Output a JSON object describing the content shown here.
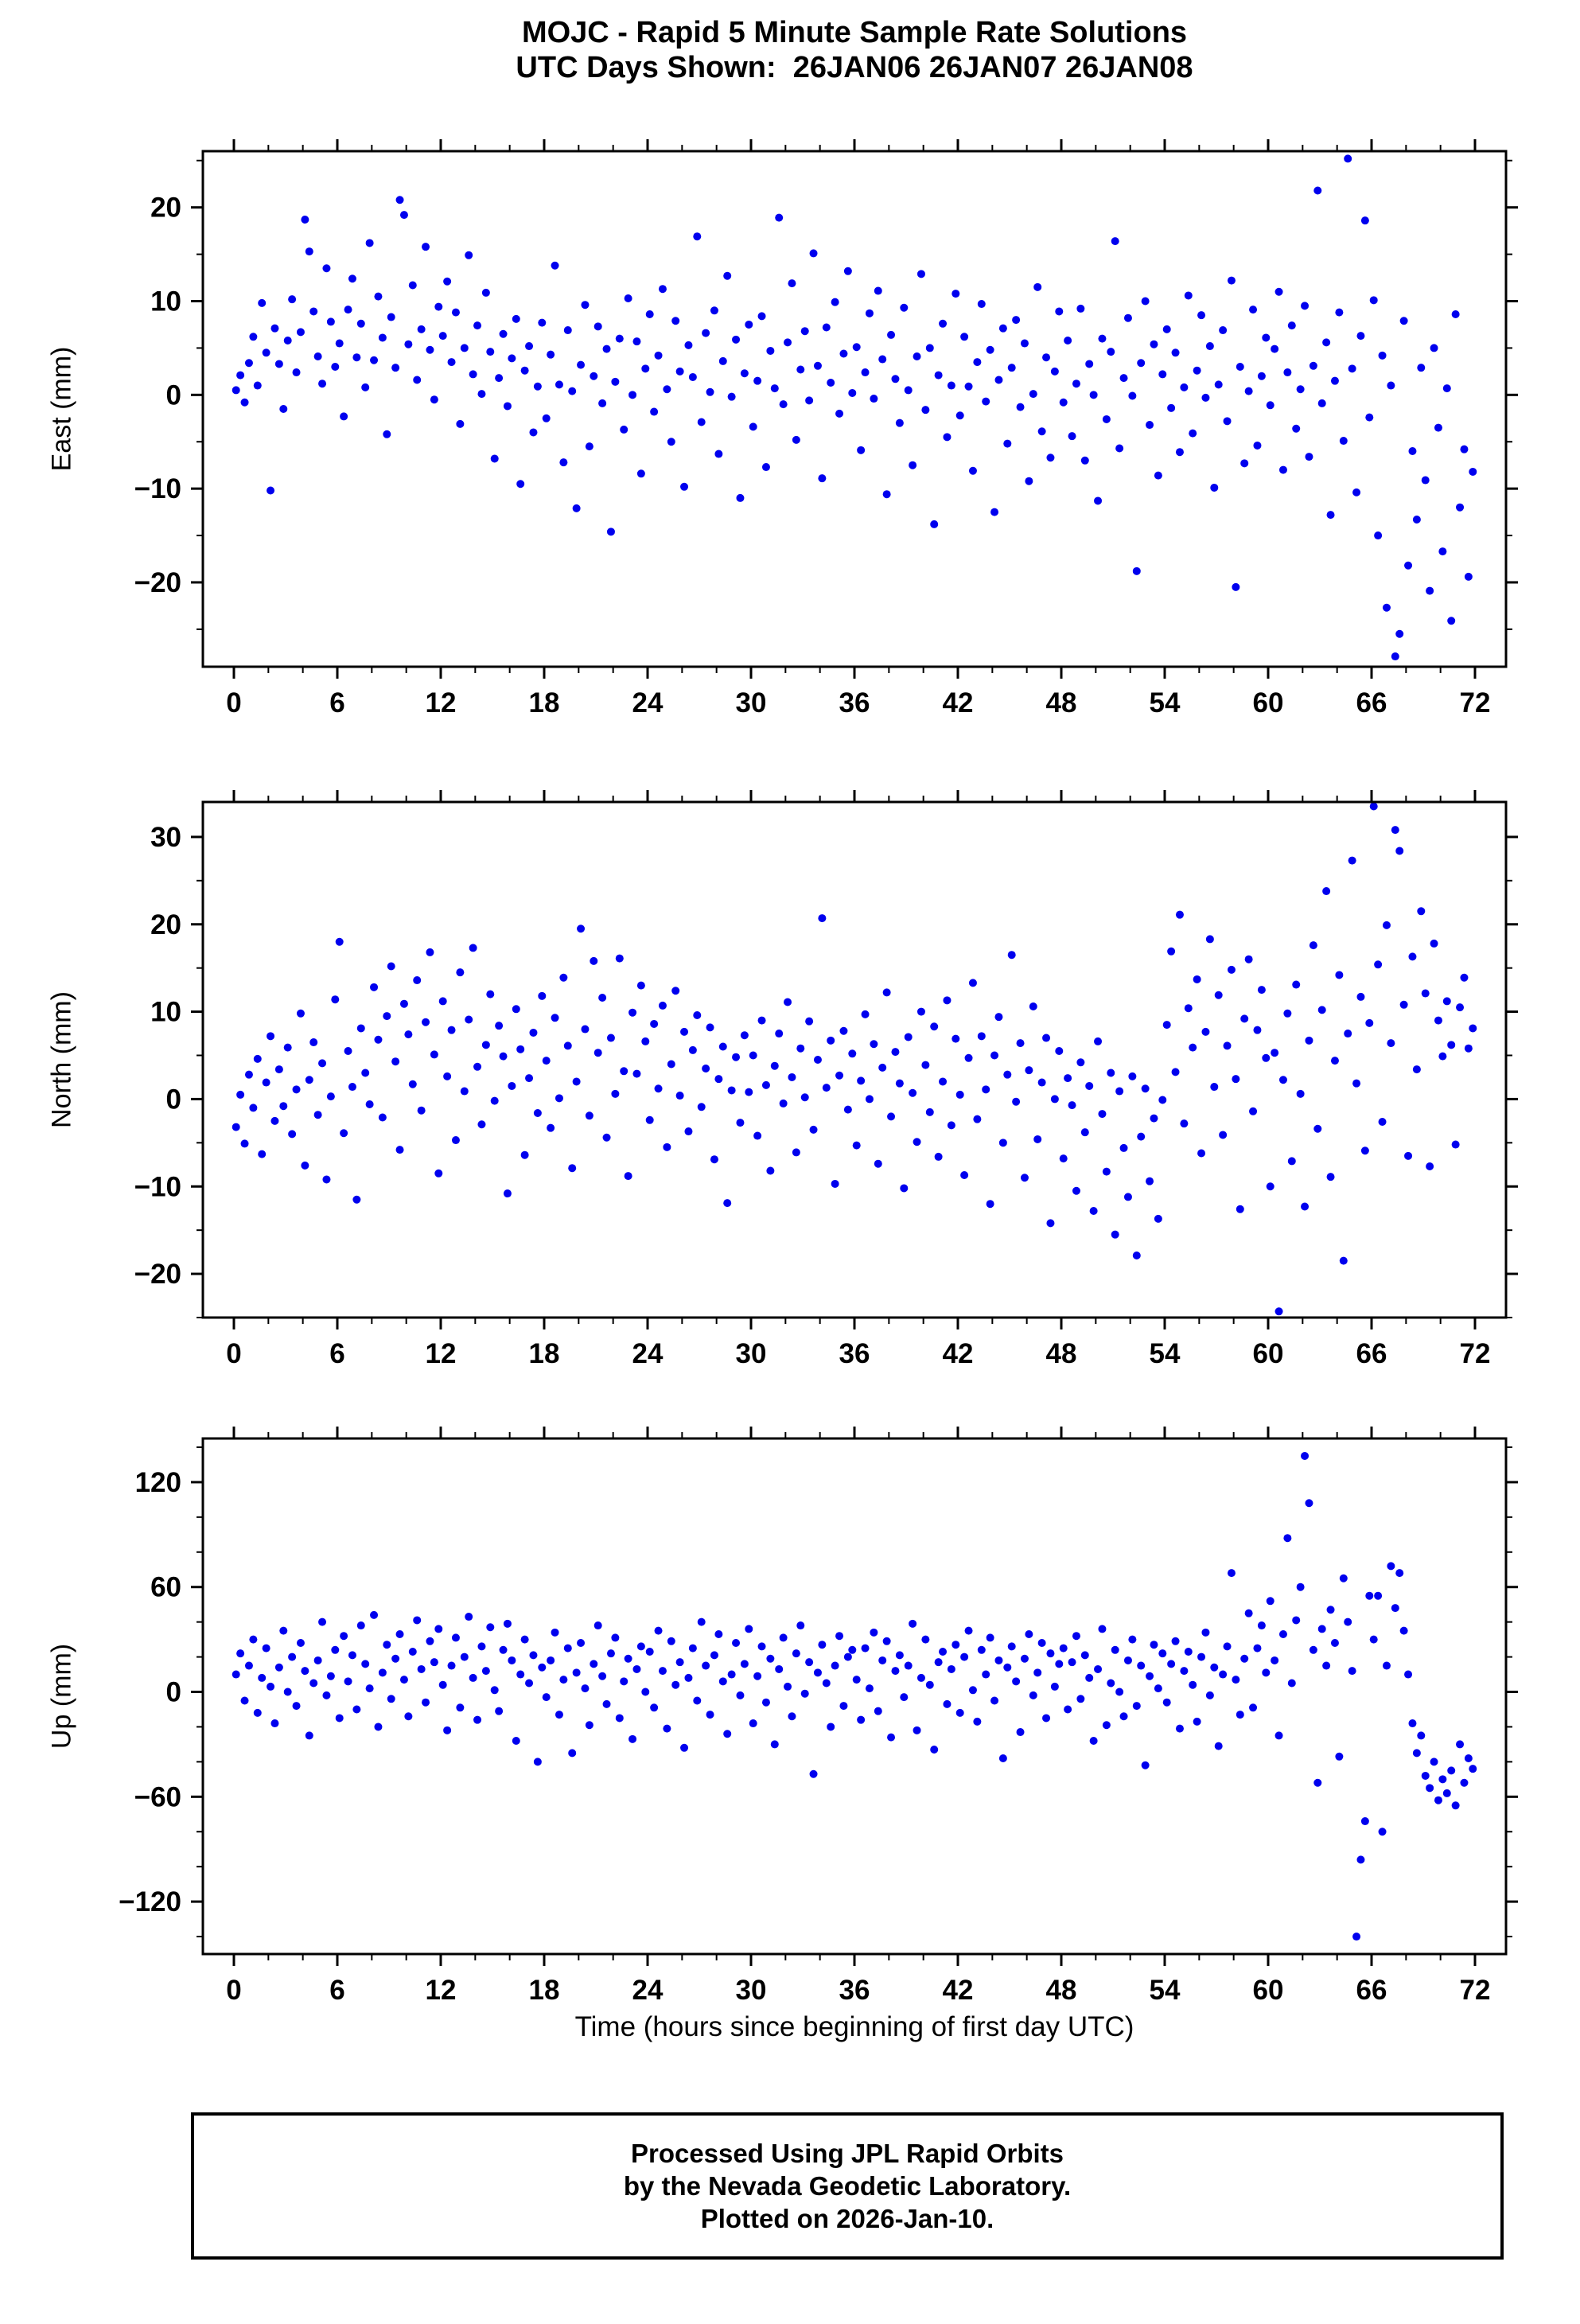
{
  "header": {
    "title": "MOJC - Rapid 5 Minute Sample Rate Solutions",
    "subtitle": "UTC Days Shown:  26JAN06 26JAN07 26JAN08"
  },
  "footer": {
    "lines": [
      "Processed Using JPL Rapid Orbits",
      "by the Nevada Geodetic Laboratory.",
      "Plotted on 2026-Jan-10."
    ]
  },
  "chart_data": {
    "type": "scatter",
    "title": "MOJC - Rapid 5 Minute Sample Rate Solutions",
    "subtitle": "UTC Days Shown:  26JAN06 26JAN07 26JAN08",
    "xlabel": "Time (hours since beginning of first day UTC)",
    "marker_color": "#0000ee",
    "x_start": 0.125,
    "x_step": 0.25,
    "xlim": [
      -1.8,
      73.8
    ],
    "x_minor": 2,
    "xticks": [
      0,
      6,
      12,
      18,
      24,
      30,
      36,
      42,
      48,
      54,
      60,
      66,
      72
    ],
    "panels": [
      {
        "name": "east",
        "ylabel": "East (mm)",
        "ylim": [
          -29,
          26
        ],
        "yticks": [
          -20,
          -10,
          0,
          10,
          20
        ],
        "y_minor": 5,
        "y": [
          0.5,
          2.1,
          -0.8,
          3.4,
          6.2,
          1.0,
          9.8,
          4.5,
          -10.2,
          7.1,
          3.3,
          -1.5,
          5.8,
          10.2,
          2.4,
          6.7,
          18.7,
          15.3,
          8.9,
          4.1,
          1.2,
          13.5,
          7.8,
          3.0,
          5.5,
          -2.3,
          9.1,
          12.4,
          4.0,
          7.6,
          0.8,
          16.2,
          3.7,
          10.5,
          6.1,
          -4.2,
          8.3,
          2.9,
          20.8,
          19.2,
          5.4,
          11.7,
          1.6,
          7.0,
          15.8,
          4.8,
          -0.5,
          9.4,
          6.3,
          12.1,
          3.5,
          8.8,
          -3.1,
          5.0,
          14.9,
          2.2,
          7.4,
          0.1,
          10.9,
          4.6,
          -6.8,
          1.8,
          6.5,
          -1.2,
          3.9,
          8.1,
          -9.5,
          2.6,
          5.2,
          -4.0,
          0.9,
          7.7,
          -2.5,
          4.3,
          13.8,
          1.1,
          -7.2,
          6.9,
          0.4,
          -12.1,
          3.2,
          9.6,
          -5.5,
          2.0,
          7.3,
          -0.9,
          4.9,
          -14.6,
          1.4,
          6.0,
          -3.7,
          10.3,
          0.0,
          5.7,
          -8.4,
          2.8,
          8.6,
          -1.8,
          4.2,
          11.3,
          0.6,
          -5.0,
          7.9,
          2.5,
          -9.8,
          5.3,
          1.9,
          16.9,
          -2.9,
          6.6,
          0.3,
          9.0,
          -6.3,
          3.6,
          12.7,
          -0.2,
          5.9,
          -11.0,
          2.3,
          7.5,
          -3.4,
          1.5,
          8.4,
          -7.7,
          4.7,
          0.7,
          18.9,
          -1.0,
          5.6,
          11.9,
          -4.8,
          2.7,
          6.8,
          -0.6,
          15.1,
          3.1,
          -8.9,
          7.2,
          1.3,
          9.9,
          -2.0,
          4.4,
          13.2,
          0.2,
          5.1,
          -5.9,
          2.4,
          8.7,
          -0.4,
          11.1,
          3.8,
          -10.6,
          6.4,
          1.7,
          -3.0,
          9.3,
          0.5,
          -7.5,
          4.1,
          12.9,
          -1.6,
          5.0,
          -13.8,
          2.1,
          7.6,
          -4.5,
          1.0,
          10.8,
          -2.2,
          6.2,
          0.9,
          -8.1,
          3.5,
          9.7,
          -0.7,
          4.8,
          -12.5,
          1.6,
          7.1,
          -5.2,
          2.9,
          8.0,
          -1.3,
          5.5,
          -9.2,
          0.1,
          11.5,
          -3.9,
          4.0,
          -6.7,
          2.5,
          8.9,
          -0.8,
          5.8,
          -4.4,
          1.2,
          9.2,
          -7.0,
          3.3,
          0.0,
          -11.3,
          6.0,
          -2.6,
          4.6,
          16.4,
          -5.7,
          1.8,
          8.2,
          -0.1,
          -18.8,
          3.4,
          10.0,
          -3.2,
          5.4,
          -8.6,
          2.2,
          7.0,
          -1.4,
          4.5,
          -6.1,
          0.8,
          10.6,
          -4.1,
          2.6,
          8.5,
          -0.3,
          5.2,
          -9.9,
          1.1,
          6.9,
          -2.8,
          12.2,
          -20.5,
          3.0,
          -7.3,
          0.4,
          9.1,
          -5.4,
          2.0,
          6.1,
          -1.1,
          4.9,
          11.0,
          -8.0,
          2.4,
          7.4,
          -3.6,
          0.6,
          9.5,
          -6.6,
          3.1,
          21.8,
          -0.9,
          5.6,
          -12.8,
          1.5,
          8.8,
          -4.9,
          25.2,
          2.8,
          -10.4,
          6.3,
          18.6,
          -2.4,
          10.1,
          -15.0,
          4.2,
          -22.7,
          1.0,
          -27.9,
          -25.5,
          7.9,
          -18.2,
          -6.0,
          -13.3,
          2.9,
          -9.1,
          -20.9,
          5.0,
          -3.5,
          -16.7,
          0.7,
          -24.1,
          8.6,
          -12.0,
          -5.8,
          -19.4,
          -8.2
        ]
      },
      {
        "name": "north",
        "ylabel": "North (mm)",
        "ylim": [
          -25,
          34
        ],
        "yticks": [
          -20,
          -10,
          0,
          10,
          20,
          30
        ],
        "y_minor": 5,
        "y": [
          -3.2,
          0.5,
          -5.1,
          2.8,
          -1.0,
          4.6,
          -6.3,
          1.9,
          7.2,
          -2.5,
          3.4,
          -0.8,
          5.9,
          -4.0,
          1.1,
          9.8,
          -7.6,
          2.2,
          6.5,
          -1.8,
          4.1,
          -9.2,
          0.3,
          11.4,
          18.0,
          -3.9,
          5.5,
          1.4,
          -11.5,
          8.1,
          3.0,
          -0.6,
          12.8,
          6.8,
          -2.1,
          9.5,
          15.2,
          4.3,
          -5.8,
          10.9,
          7.4,
          1.7,
          13.6,
          -1.3,
          8.8,
          16.8,
          5.1,
          -8.5,
          11.2,
          2.6,
          7.9,
          -4.7,
          14.5,
          0.9,
          9.1,
          17.3,
          3.7,
          -2.9,
          6.2,
          12.0,
          -0.2,
          8.4,
          4.9,
          -10.8,
          1.5,
          10.3,
          5.7,
          -6.4,
          2.4,
          7.6,
          -1.6,
          11.8,
          4.4,
          -3.3,
          9.3,
          0.1,
          13.9,
          6.1,
          -7.9,
          2.0,
          19.5,
          8.0,
          -1.9,
          15.8,
          5.3,
          11.6,
          -4.4,
          7.0,
          0.6,
          16.1,
          3.2,
          -8.8,
          9.9,
          2.9,
          13.0,
          6.6,
          -2.4,
          8.6,
          1.2,
          10.7,
          -5.5,
          4.0,
          12.4,
          0.4,
          7.7,
          -3.7,
          5.6,
          9.6,
          -0.9,
          3.5,
          8.2,
          -6.9,
          2.3,
          6.0,
          -11.9,
          1.0,
          4.8,
          -2.7,
          7.3,
          0.8,
          5.0,
          -4.2,
          9.0,
          1.6,
          -8.2,
          3.8,
          7.5,
          -0.5,
          11.1,
          2.5,
          -6.1,
          5.8,
          0.2,
          8.9,
          -3.5,
          4.5,
          20.7,
          1.3,
          6.7,
          -9.7,
          2.7,
          7.8,
          -1.2,
          5.2,
          -5.3,
          2.1,
          9.7,
          0.0,
          6.3,
          -7.4,
          3.6,
          12.2,
          -2.0,
          5.4,
          1.8,
          -10.2,
          7.1,
          0.7,
          -4.9,
          10.0,
          3.9,
          -1.5,
          8.3,
          -6.6,
          2.0,
          11.3,
          -3.0,
          6.9,
          0.5,
          -8.7,
          4.7,
          13.3,
          -2.3,
          7.2,
          1.1,
          -12.0,
          5.0,
          9.4,
          -5.0,
          2.8,
          16.5,
          -0.3,
          6.4,
          -9.0,
          3.3,
          10.6,
          -4.6,
          1.9,
          7.0,
          -14.2,
          0.0,
          5.5,
          -6.8,
          2.4,
          -0.7,
          -10.5,
          4.2,
          -3.8,
          1.5,
          -12.8,
          6.6,
          -1.7,
          -8.3,
          3.0,
          -15.5,
          0.9,
          -5.6,
          -11.2,
          2.6,
          -17.9,
          -4.3,
          1.2,
          -9.4,
          -2.2,
          -13.7,
          -0.1,
          8.5,
          16.9,
          3.1,
          21.1,
          -2.8,
          10.4,
          5.9,
          13.7,
          -6.2,
          7.7,
          18.3,
          1.4,
          11.9,
          -4.1,
          6.1,
          14.8,
          2.3,
          -12.6,
          9.2,
          16.0,
          -1.4,
          7.9,
          12.5,
          4.7,
          -10.0,
          5.3,
          -24.3,
          2.2,
          9.8,
          -7.1,
          13.1,
          0.6,
          -12.3,
          6.7,
          17.6,
          -3.4,
          10.2,
          23.8,
          -8.9,
          4.4,
          14.2,
          -18.5,
          7.5,
          27.3,
          1.8,
          11.7,
          -5.9,
          8.7,
          33.5,
          15.4,
          -2.6,
          19.9,
          6.4,
          30.8,
          28.4,
          10.8,
          -6.5,
          16.3,
          3.4,
          21.5,
          12.1,
          -7.7,
          17.8,
          9.0,
          4.9,
          11.2,
          6.2,
          -5.2,
          10.5,
          13.9,
          5.8,
          8.1
        ]
      },
      {
        "name": "up",
        "ylabel": "Up (mm)",
        "ylim": [
          -150,
          145
        ],
        "yticks": [
          -120,
          -60,
          0,
          60,
          120
        ],
        "y_minor": 20,
        "y": [
          10,
          22,
          -5,
          15,
          30,
          -12,
          8,
          25,
          3,
          -18,
          14,
          35,
          0,
          20,
          -8,
          28,
          12,
          -25,
          5,
          18,
          40,
          -2,
          9,
          24,
          -15,
          32,
          6,
          21,
          -10,
          38,
          16,
          2,
          44,
          -20,
          11,
          27,
          -4,
          19,
          33,
          7,
          -14,
          23,
          41,
          13,
          -6,
          29,
          17,
          36,
          4,
          -22,
          15,
          31,
          -9,
          20,
          43,
          8,
          -16,
          26,
          12,
          37,
          1,
          -11,
          24,
          39,
          18,
          -28,
          10,
          30,
          5,
          21,
          -40,
          14,
          -3,
          18,
          34,
          -13,
          7,
          25,
          -35,
          11,
          28,
          2,
          -19,
          16,
          38,
          9,
          -7,
          22,
          31,
          -15,
          6,
          19,
          -27,
          13,
          26,
          0,
          23,
          -9,
          35,
          12,
          -21,
          29,
          4,
          17,
          -32,
          8,
          25,
          -5,
          40,
          15,
          -13,
          21,
          33,
          6,
          -24,
          10,
          28,
          -2,
          16,
          36,
          -18,
          9,
          26,
          -6,
          19,
          -30,
          13,
          31,
          3,
          -14,
          22,
          38,
          -1,
          17,
          -47,
          11,
          27,
          5,
          -20,
          15,
          32,
          -8,
          20,
          24,
          7,
          -16,
          25,
          2,
          34,
          -11,
          18,
          29,
          -26,
          12,
          21,
          -3,
          15,
          39,
          -22,
          8,
          30,
          4,
          -33,
          17,
          23,
          -7,
          13,
          27,
          -12,
          20,
          35,
          1,
          -17,
          24,
          10,
          31,
          -5,
          18,
          -38,
          14,
          26,
          6,
          -23,
          19,
          33,
          -2,
          11,
          28,
          -15,
          22,
          3,
          16,
          25,
          -10,
          17,
          32,
          -4,
          21,
          8,
          -28,
          13,
          36,
          -19,
          5,
          24,
          0,
          -14,
          18,
          30,
          -8,
          15,
          -42,
          9,
          27,
          2,
          22,
          -6,
          16,
          29,
          -21,
          12,
          23,
          4,
          -17,
          20,
          34,
          -2,
          14,
          -31,
          10,
          26,
          68,
          7,
          -13,
          19,
          45,
          -9,
          25,
          38,
          11,
          52,
          18,
          -25,
          33,
          88,
          5,
          41,
          60,
          135,
          108,
          24,
          -52,
          36,
          15,
          47,
          28,
          -37,
          65,
          40,
          12,
          -140,
          -96,
          -74,
          55,
          30,
          55,
          -80,
          15,
          72,
          48,
          68,
          35,
          10,
          -18,
          -35,
          -25,
          -48,
          -55,
          -40,
          -62,
          -50,
          -58,
          -45,
          -65,
          -30,
          -52,
          -38,
          -44
        ]
      }
    ]
  }
}
